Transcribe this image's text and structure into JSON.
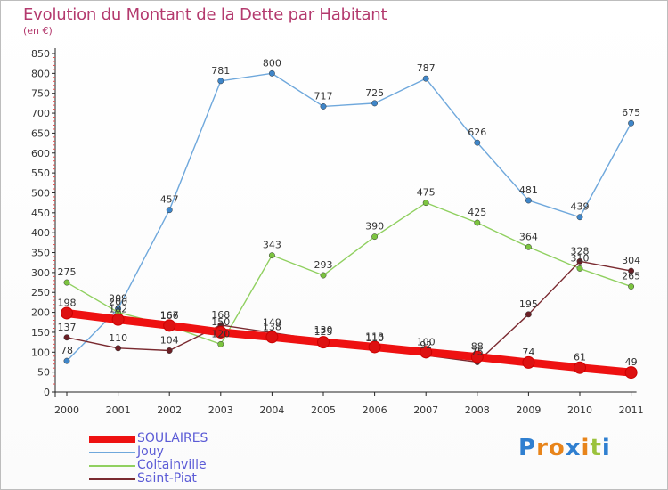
{
  "header": {
    "title": "Evolution du Montant de la Dette par Habitant",
    "subtitle": "(en €)"
  },
  "brand": {
    "chars": [
      "P",
      "r",
      "o",
      "x",
      "i",
      "t",
      "i"
    ],
    "colors": [
      "#2f7fd0",
      "#e8841a",
      "#e8841a",
      "#2f7fd0",
      "#e8841a",
      "#9bc23c",
      "#2f7fd0"
    ]
  },
  "colors": {
    "SOULAIRES": "#ee1111",
    "Jouy": "#6fa8dc",
    "Coltainville": "#90d060",
    "Saint-Piat": "#7a2a30",
    "Jouy_marker": "#3f86c9",
    "Coltainville_marker": "#7cc440",
    "Saint-Piat_marker": "#6b1f25",
    "SOULAIRES_marker": "#dd1111"
  },
  "chart_data": {
    "type": "line",
    "title": "Evolution du Montant de la Dette par Habitant",
    "ylabel": "(en €)",
    "xlabel": "",
    "ylim": [
      0,
      850
    ],
    "yticks": [
      "0",
      "50",
      "100",
      "150",
      "200",
      "250",
      "300",
      "350",
      "400",
      "450",
      "500",
      "550",
      "600",
      "650",
      "700",
      "750",
      "800",
      "850"
    ],
    "categories": [
      "2000",
      "2001",
      "2002",
      "2003",
      "2004",
      "2005",
      "2006",
      "2007",
      "2008",
      "2009",
      "2010",
      "2011"
    ],
    "grid": false,
    "legend_position": "bottom-left",
    "series": [
      {
        "name": "SOULAIRES",
        "values": [
          198,
          182,
          167,
          150,
          138,
          125,
          113,
          100,
          88,
          74,
          61,
          49
        ]
      },
      {
        "name": "Jouy",
        "values": [
          78,
          209,
          457,
          781,
          800,
          717,
          725,
          787,
          626,
          481,
          439,
          675
        ]
      },
      {
        "name": "Coltainville",
        "values": [
          275,
          200,
          166,
          120,
          343,
          293,
          390,
          475,
          425,
          364,
          310,
          265
        ]
      },
      {
        "name": "Saint-Piat",
        "values": [
          137,
          110,
          104,
          168,
          149,
          130,
          110,
          92,
          75,
          195,
          328,
          304
        ]
      }
    ]
  }
}
